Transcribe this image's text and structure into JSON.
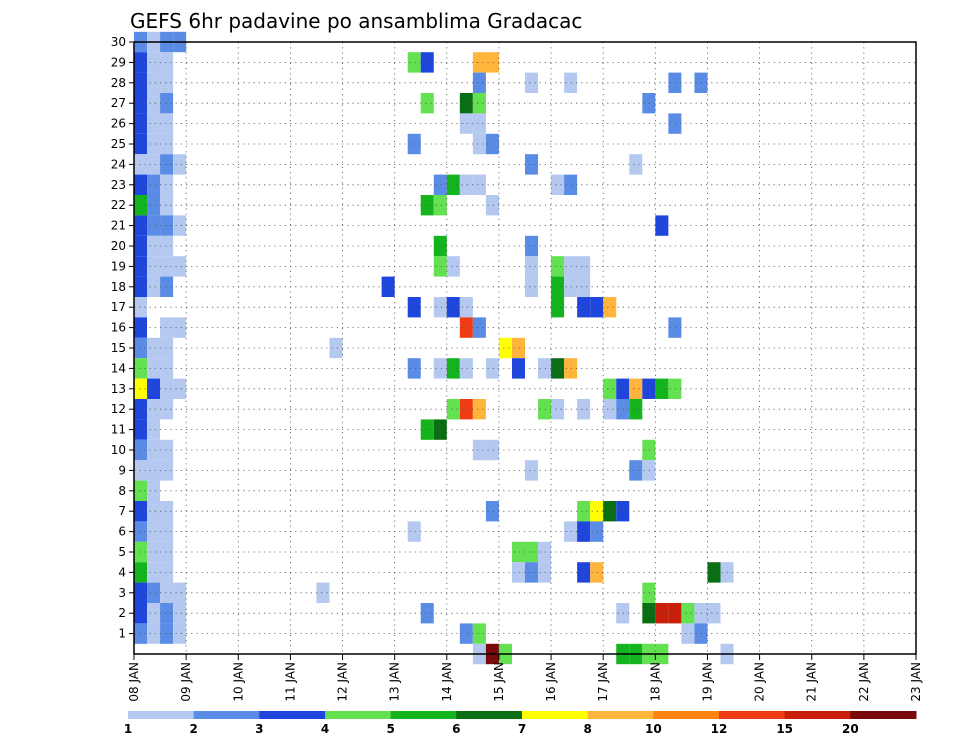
{
  "chart_data": {
    "type": "heatmap",
    "title": "GEFS 6hr padavine po ansamblima Gradacac",
    "x_tick_labels": [
      "08 JAN",
      "09 JAN",
      "10 JAN",
      "11 JAN",
      "12 JAN",
      "13 JAN",
      "14 JAN",
      "15 JAN",
      "16 JAN",
      "17 JAN",
      "18 JAN",
      "19 JAN",
      "20 JAN",
      "21 JAN",
      "22 JAN",
      "23 JAN"
    ],
    "y_tick_labels": [
      "1",
      "2",
      "3",
      "4",
      "5",
      "6",
      "7",
      "8",
      "9",
      "10",
      "11",
      "12",
      "13",
      "14",
      "15",
      "16",
      "17",
      "18",
      "19",
      "20",
      "21",
      "22",
      "23",
      "24",
      "25",
      "26",
      "27",
      "28",
      "29",
      "30"
    ],
    "x_range_days": [
      0,
      15
    ],
    "y_range": [
      0,
      30
    ],
    "grid": "dotted",
    "time_step_days": 0.25,
    "legend": {
      "placement": "bottom",
      "labels": [
        "1",
        "2",
        "3",
        "4",
        "5",
        "6",
        "7",
        "8",
        "10",
        "12",
        "15",
        "20"
      ],
      "colors": [
        "#b4c8f0",
        "#5a8ce6",
        "#1e46dc",
        "#64e150",
        "#14b41e",
        "#0a6e14",
        "#ffff00",
        "#ffb43c",
        "#ff8214",
        "#f03c14",
        "#c81e0a",
        "#7a0a0a"
      ]
    },
    "cells": [
      [
        0,
        30,
        "#5a8ce6"
      ],
      [
        1,
        30,
        "#b4c8f0"
      ],
      [
        2,
        30,
        "#5a8ce6"
      ],
      [
        3,
        30,
        "#5a8ce6"
      ],
      [
        0,
        29,
        "#1e46dc"
      ],
      [
        1,
        29,
        "#b4c8f0"
      ],
      [
        2,
        29,
        "#b4c8f0"
      ],
      [
        0,
        28,
        "#1e46dc"
      ],
      [
        1,
        28,
        "#b4c8f0"
      ],
      [
        2,
        28,
        "#b4c8f0"
      ],
      [
        0,
        27,
        "#1e46dc"
      ],
      [
        1,
        27,
        "#b4c8f0"
      ],
      [
        2,
        27,
        "#5a8ce6"
      ],
      [
        0,
        26,
        "#1e46dc"
      ],
      [
        1,
        26,
        "#b4c8f0"
      ],
      [
        2,
        26,
        "#b4c8f0"
      ],
      [
        0,
        25,
        "#1e46dc"
      ],
      [
        1,
        25,
        "#b4c8f0"
      ],
      [
        2,
        25,
        "#b4c8f0"
      ],
      [
        0,
        24,
        "#b4c8f0"
      ],
      [
        1,
        24,
        "#b4c8f0"
      ],
      [
        2,
        24,
        "#5a8ce6"
      ],
      [
        3,
        24,
        "#b4c8f0"
      ],
      [
        0,
        23,
        "#1e46dc"
      ],
      [
        1,
        23,
        "#5a8ce6"
      ],
      [
        2,
        23,
        "#b4c8f0"
      ],
      [
        0,
        22,
        "#14b41e"
      ],
      [
        1,
        22,
        "#5a8ce6"
      ],
      [
        2,
        22,
        "#b4c8f0"
      ],
      [
        0,
        21,
        "#1e46dc"
      ],
      [
        1,
        21,
        "#5a8ce6"
      ],
      [
        2,
        21,
        "#5a8ce6"
      ],
      [
        3,
        21,
        "#b4c8f0"
      ],
      [
        0,
        20,
        "#1e46dc"
      ],
      [
        1,
        20,
        "#b4c8f0"
      ],
      [
        2,
        20,
        "#b4c8f0"
      ],
      [
        0,
        19,
        "#1e46dc"
      ],
      [
        1,
        19,
        "#b4c8f0"
      ],
      [
        2,
        19,
        "#b4c8f0"
      ],
      [
        3,
        19,
        "#b4c8f0"
      ],
      [
        0,
        18,
        "#1e46dc"
      ],
      [
        1,
        18,
        "#b4c8f0"
      ],
      [
        2,
        18,
        "#5a8ce6"
      ],
      [
        0,
        17,
        "#b4c8f0"
      ],
      [
        0,
        16,
        "#1e46dc"
      ],
      [
        2,
        16,
        "#b4c8f0"
      ],
      [
        3,
        16,
        "#b4c8f0"
      ],
      [
        0,
        15,
        "#5a8ce6"
      ],
      [
        1,
        15,
        "#b4c8f0"
      ],
      [
        2,
        15,
        "#b4c8f0"
      ],
      [
        0,
        14,
        "#64e150"
      ],
      [
        1,
        14,
        "#b4c8f0"
      ],
      [
        2,
        14,
        "#b4c8f0"
      ],
      [
        0,
        13,
        "#ffff00"
      ],
      [
        1,
        13,
        "#1e46dc"
      ],
      [
        2,
        13,
        "#b4c8f0"
      ],
      [
        3,
        13,
        "#b4c8f0"
      ],
      [
        0,
        12,
        "#1e46dc"
      ],
      [
        1,
        12,
        "#b4c8f0"
      ],
      [
        2,
        12,
        "#b4c8f0"
      ],
      [
        0,
        11,
        "#1e46dc"
      ],
      [
        1,
        11,
        "#b4c8f0"
      ],
      [
        0,
        10,
        "#5a8ce6"
      ],
      [
        1,
        10,
        "#b4c8f0"
      ],
      [
        2,
        10,
        "#b4c8f0"
      ],
      [
        0,
        9,
        "#b4c8f0"
      ],
      [
        1,
        9,
        "#b4c8f0"
      ],
      [
        2,
        9,
        "#b4c8f0"
      ],
      [
        0,
        8,
        "#64e150"
      ],
      [
        1,
        8,
        "#b4c8f0"
      ],
      [
        0,
        7,
        "#1e46dc"
      ],
      [
        1,
        7,
        "#b4c8f0"
      ],
      [
        2,
        7,
        "#b4c8f0"
      ],
      [
        0,
        6,
        "#5a8ce6"
      ],
      [
        1,
        6,
        "#b4c8f0"
      ],
      [
        2,
        6,
        "#b4c8f0"
      ],
      [
        0,
        5,
        "#64e150"
      ],
      [
        1,
        5,
        "#b4c8f0"
      ],
      [
        2,
        5,
        "#b4c8f0"
      ],
      [
        0,
        4,
        "#14b41e"
      ],
      [
        1,
        4,
        "#b4c8f0"
      ],
      [
        2,
        4,
        "#b4c8f0"
      ],
      [
        0,
        3,
        "#1e46dc"
      ],
      [
        1,
        3,
        "#5a8ce6"
      ],
      [
        2,
        3,
        "#b4c8f0"
      ],
      [
        3,
        3,
        "#b4c8f0"
      ],
      [
        0,
        2,
        "#1e46dc"
      ],
      [
        1,
        2,
        "#b4c8f0"
      ],
      [
        2,
        2,
        "#5a8ce6"
      ],
      [
        3,
        2,
        "#b4c8f0"
      ],
      [
        0,
        1,
        "#5a8ce6"
      ],
      [
        1,
        1,
        "#b4c8f0"
      ],
      [
        2,
        1,
        "#5a8ce6"
      ],
      [
        3,
        1,
        "#b4c8f0"
      ],
      [
        21,
        29,
        "#64e150"
      ],
      [
        22,
        29,
        "#1e46dc"
      ],
      [
        26,
        29,
        "#ffb43c"
      ],
      [
        27,
        29,
        "#ffb43c"
      ],
      [
        26,
        28,
        "#5a8ce6"
      ],
      [
        30,
        28,
        "#b4c8f0"
      ],
      [
        33,
        28,
        "#b4c8f0"
      ],
      [
        41,
        28,
        "#5a8ce6"
      ],
      [
        43,
        28,
        "#5a8ce6"
      ],
      [
        22,
        27,
        "#64e150"
      ],
      [
        25,
        27,
        "#0a6e14"
      ],
      [
        26,
        27,
        "#64e150"
      ],
      [
        39,
        27,
        "#5a8ce6"
      ],
      [
        25,
        26,
        "#b4c8f0"
      ],
      [
        26,
        26,
        "#b4c8f0"
      ],
      [
        41,
        26,
        "#5a8ce6"
      ],
      [
        21,
        25,
        "#5a8ce6"
      ],
      [
        26,
        25,
        "#b4c8f0"
      ],
      [
        27,
        25,
        "#5a8ce6"
      ],
      [
        30,
        24,
        "#5a8ce6"
      ],
      [
        38,
        24,
        "#b4c8f0"
      ],
      [
        23,
        23,
        "#5a8ce6"
      ],
      [
        24,
        23,
        "#14b41e"
      ],
      [
        25,
        23,
        "#b4c8f0"
      ],
      [
        26,
        23,
        "#b4c8f0"
      ],
      [
        32,
        23,
        "#b4c8f0"
      ],
      [
        33,
        23,
        "#5a8ce6"
      ],
      [
        22,
        22,
        "#14b41e"
      ],
      [
        23,
        22,
        "#64e150"
      ],
      [
        27,
        22,
        "#b4c8f0"
      ],
      [
        40,
        21,
        "#1e46dc"
      ],
      [
        23,
        20,
        "#14b41e"
      ],
      [
        30,
        20,
        "#5a8ce6"
      ],
      [
        23,
        19,
        "#64e150"
      ],
      [
        24,
        19,
        "#b4c8f0"
      ],
      [
        30,
        19,
        "#b4c8f0"
      ],
      [
        32,
        19,
        "#64e150"
      ],
      [
        33,
        19,
        "#b4c8f0"
      ],
      [
        34,
        19,
        "#b4c8f0"
      ],
      [
        19,
        18,
        "#1e46dc"
      ],
      [
        30,
        18,
        "#b4c8f0"
      ],
      [
        32,
        18,
        "#14b41e"
      ],
      [
        33,
        18,
        "#b4c8f0"
      ],
      [
        34,
        18,
        "#b4c8f0"
      ],
      [
        21,
        17,
        "#1e46dc"
      ],
      [
        23,
        17,
        "#b4c8f0"
      ],
      [
        24,
        17,
        "#1e46dc"
      ],
      [
        25,
        17,
        "#b4c8f0"
      ],
      [
        32,
        17,
        "#14b41e"
      ],
      [
        34,
        17,
        "#1e46dc"
      ],
      [
        35,
        17,
        "#1e46dc"
      ],
      [
        36,
        17,
        "#ffb43c"
      ],
      [
        25,
        16,
        "#f03c14"
      ],
      [
        26,
        16,
        "#5a8ce6"
      ],
      [
        41,
        16,
        "#5a8ce6"
      ],
      [
        15,
        15,
        "#b4c8f0"
      ],
      [
        28,
        15,
        "#ffff00"
      ],
      [
        29,
        15,
        "#ffb43c"
      ],
      [
        21,
        14,
        "#5a8ce6"
      ],
      [
        23,
        14,
        "#b4c8f0"
      ],
      [
        24,
        14,
        "#14b41e"
      ],
      [
        25,
        14,
        "#b4c8f0"
      ],
      [
        27,
        14,
        "#b4c8f0"
      ],
      [
        29,
        14,
        "#1e46dc"
      ],
      [
        31,
        14,
        "#b4c8f0"
      ],
      [
        32,
        14,
        "#0a6e14"
      ],
      [
        33,
        14,
        "#ffb43c"
      ],
      [
        36,
        13,
        "#64e150"
      ],
      [
        37,
        13,
        "#1e46dc"
      ],
      [
        38,
        13,
        "#ffb43c"
      ],
      [
        39,
        13,
        "#1e46dc"
      ],
      [
        40,
        13,
        "#14b41e"
      ],
      [
        41,
        13,
        "#64e150"
      ],
      [
        24,
        12,
        "#64e150"
      ],
      [
        25,
        12,
        "#f03c14"
      ],
      [
        26,
        12,
        "#ffb43c"
      ],
      [
        31,
        12,
        "#64e150"
      ],
      [
        32,
        12,
        "#b4c8f0"
      ],
      [
        34,
        12,
        "#b4c8f0"
      ],
      [
        36,
        12,
        "#b4c8f0"
      ],
      [
        37,
        12,
        "#5a8ce6"
      ],
      [
        38,
        12,
        "#14b41e"
      ],
      [
        22,
        11,
        "#14b41e"
      ],
      [
        23,
        11,
        "#0a6e14"
      ],
      [
        26,
        10,
        "#b4c8f0"
      ],
      [
        27,
        10,
        "#b4c8f0"
      ],
      [
        39,
        10,
        "#64e150"
      ],
      [
        30,
        9,
        "#b4c8f0"
      ],
      [
        38,
        9,
        "#5a8ce6"
      ],
      [
        39,
        9,
        "#b4c8f0"
      ],
      [
        27,
        7,
        "#5a8ce6"
      ],
      [
        34,
        7,
        "#64e150"
      ],
      [
        35,
        7,
        "#ffff00"
      ],
      [
        36,
        7,
        "#0a6e14"
      ],
      [
        37,
        7,
        "#1e46dc"
      ],
      [
        21,
        6,
        "#b4c8f0"
      ],
      [
        33,
        6,
        "#b4c8f0"
      ],
      [
        34,
        6,
        "#1e46dc"
      ],
      [
        35,
        6,
        "#5a8ce6"
      ],
      [
        29,
        5,
        "#64e150"
      ],
      [
        30,
        5,
        "#64e150"
      ],
      [
        31,
        5,
        "#b4c8f0"
      ],
      [
        29,
        4,
        "#b4c8f0"
      ],
      [
        30,
        4,
        "#5a8ce6"
      ],
      [
        31,
        4,
        "#b4c8f0"
      ],
      [
        34,
        4,
        "#1e46dc"
      ],
      [
        35,
        4,
        "#ffb43c"
      ],
      [
        44,
        4,
        "#0a6e14"
      ],
      [
        45,
        4,
        "#b4c8f0"
      ],
      [
        14,
        3,
        "#b4c8f0"
      ],
      [
        39,
        3,
        "#64e150"
      ],
      [
        22,
        2,
        "#5a8ce6"
      ],
      [
        37,
        2,
        "#b4c8f0"
      ],
      [
        39,
        2,
        "#0a6e14"
      ],
      [
        40,
        2,
        "#c81e0a"
      ],
      [
        41,
        2,
        "#c81e0a"
      ],
      [
        42,
        2,
        "#64e150"
      ],
      [
        43,
        2,
        "#b4c8f0"
      ],
      [
        44,
        2,
        "#b4c8f0"
      ],
      [
        25,
        1,
        "#5a8ce6"
      ],
      [
        26,
        1,
        "#64e150"
      ],
      [
        42,
        1,
        "#b4c8f0"
      ],
      [
        43,
        1,
        "#5a8ce6"
      ],
      [
        26,
        0,
        "#b4c8f0"
      ],
      [
        27,
        0,
        "#7a0a0a"
      ],
      [
        28,
        0,
        "#64e150"
      ],
      [
        37,
        0,
        "#14b41e"
      ],
      [
        38,
        0,
        "#14b41e"
      ],
      [
        39,
        0,
        "#64e150"
      ],
      [
        40,
        0,
        "#64e150"
      ],
      [
        45,
        0,
        "#b4c8f0"
      ]
    ]
  }
}
